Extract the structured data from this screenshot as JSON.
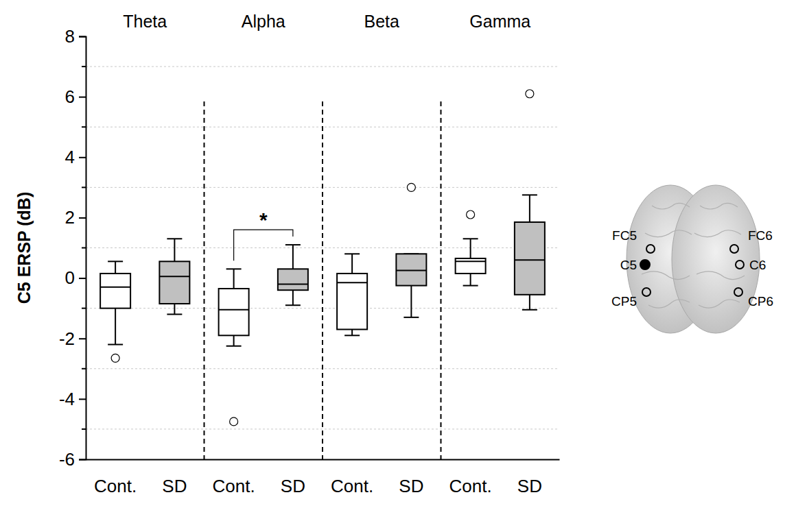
{
  "chart_data": {
    "type": "box",
    "y_label": "C5 ERSP (dB)",
    "groups": [
      "Theta",
      "Alpha",
      "Beta",
      "Gamma"
    ],
    "categories": [
      "Cont.",
      "SD",
      "Cont.",
      "SD",
      "Cont.",
      "SD",
      "Cont.",
      "SD"
    ],
    "colors": [
      "#ffffff",
      "#c0c0c0",
      "#ffffff",
      "#c0c0c0",
      "#ffffff",
      "#c0c0c0",
      "#ffffff",
      "#c0c0c0"
    ],
    "boxes": [
      {
        "whisker_low": -2.2,
        "q1": -1.0,
        "median": -0.3,
        "q3": 0.15,
        "whisker_high": 0.55,
        "outliers": [
          -2.65
        ]
      },
      {
        "whisker_low": -1.2,
        "q1": -0.85,
        "median": 0.05,
        "q3": 0.55,
        "whisker_high": 1.3,
        "outliers": []
      },
      {
        "whisker_low": -2.25,
        "q1": -1.9,
        "median": -1.05,
        "q3": -0.35,
        "whisker_high": 0.3,
        "outliers": [
          -4.75
        ]
      },
      {
        "whisker_low": -0.9,
        "q1": -0.4,
        "median": -0.2,
        "q3": 0.3,
        "whisker_high": 1.1,
        "outliers": []
      },
      {
        "whisker_low": -1.9,
        "q1": -1.7,
        "median": -0.15,
        "q3": 0.15,
        "whisker_high": 0.8,
        "outliers": []
      },
      {
        "whisker_low": -1.3,
        "q1": -0.25,
        "median": 0.25,
        "q3": 0.8,
        "whisker_high": 0.8,
        "outliers": [
          3.0
        ]
      },
      {
        "whisker_low": -0.25,
        "q1": 0.15,
        "median": 0.55,
        "q3": 0.65,
        "whisker_high": 1.3,
        "outliers": [
          2.1
        ]
      },
      {
        "whisker_low": -1.05,
        "q1": -0.55,
        "median": 0.6,
        "q3": 1.85,
        "whisker_high": 2.75,
        "outliers": [
          6.1
        ]
      }
    ],
    "ylim": [
      -6,
      8
    ],
    "yticks": [
      -6,
      -4,
      -2,
      0,
      2,
      4,
      6,
      8
    ],
    "minor_yticks": [
      -5,
      -3,
      -1,
      1,
      3,
      5,
      7
    ],
    "grid": true,
    "annotations": [
      {
        "text": "*",
        "from": 2,
        "to": 3,
        "y": 1.6
      }
    ]
  },
  "inset": {
    "electrodes": [
      "FC5",
      "C5",
      "CP5",
      "FC6",
      "C6",
      "CP6"
    ],
    "selected": "C5"
  }
}
